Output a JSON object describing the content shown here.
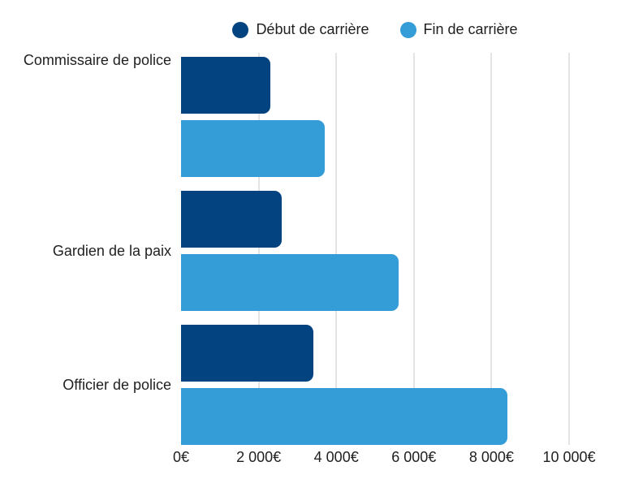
{
  "chart_data": {
    "type": "bar",
    "orientation": "horizontal",
    "title": "",
    "xlabel": "",
    "ylabel": "",
    "value_unit": "€",
    "categories": [
      "Gardien de la paix",
      "Officier de police",
      "Commissaire de police"
    ],
    "series": [
      {
        "name": "Début de carrière",
        "color": "#034380",
        "values": [
          2300,
          2600,
          3400
        ]
      },
      {
        "name": "Fin de carrière",
        "color": "#349CD6",
        "values": [
          3700,
          5600,
          8400
        ]
      }
    ],
    "xlim": [
      0,
      10000
    ],
    "x_tick_values": [
      0,
      2000,
      4000,
      6000,
      8000,
      10000
    ],
    "x_tick_labels": [
      "0€",
      "2 000€",
      "4 000€",
      "6 000€",
      "8 000€",
      "10 000€"
    ],
    "grid": "vertical",
    "gridline_color": "#e4e4e4",
    "background_color": "#ffffff",
    "legend_position": "top"
  }
}
